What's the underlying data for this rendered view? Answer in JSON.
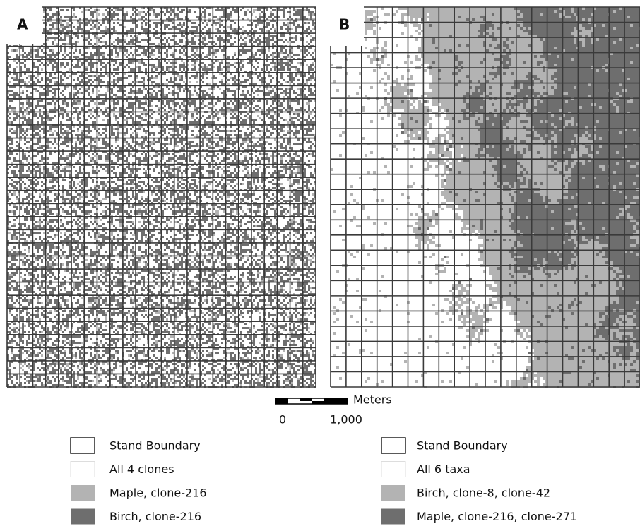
{
  "panels": [
    {
      "label": "A",
      "legend": [
        "Stand Boundary",
        "All 4 clones",
        "Maple, clone-216",
        "Birch, clone-216"
      ]
    },
    {
      "label": "B",
      "legend": [
        "Stand Boundary",
        "All 6 taxa",
        "Birch, clone-8, clone-42",
        "Maple, clone-216, clone-271"
      ]
    }
  ],
  "scale_bar": {
    "unit": "Meters",
    "start": "0",
    "end": "1,000"
  }
}
